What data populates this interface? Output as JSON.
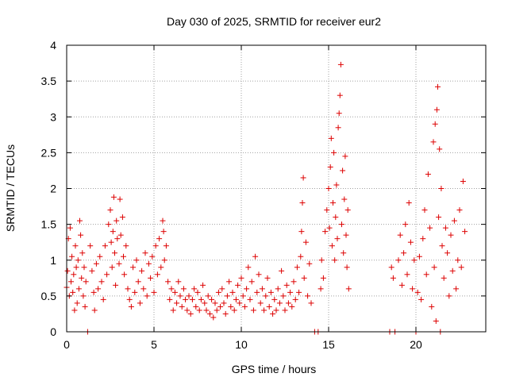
{
  "chart_data": {
    "type": "scatter",
    "title": "Day 030 of 2025, SRMTID for receiver eur2",
    "xlabel": "GPS time / hours",
    "ylabel": "SRMTID / TECUs",
    "xlim": [
      0,
      24
    ],
    "ylim": [
      0,
      4
    ],
    "xticks": [
      0,
      5,
      10,
      15,
      20
    ],
    "yticks": [
      0,
      0.5,
      1,
      1.5,
      2,
      2.5,
      3,
      3.5,
      4
    ],
    "grid": true,
    "marker": "+",
    "color": "#dd0000",
    "series": [
      {
        "name": "SRMTID",
        "points": [
          [
            0.0,
            0.62
          ],
          [
            0.05,
            0.85
          ],
          [
            0.1,
            1.3
          ],
          [
            0.15,
            0.5
          ],
          [
            0.2,
            1.45
          ],
          [
            0.25,
            0.7
          ],
          [
            0.3,
            1.05
          ],
          [
            0.35,
            0.55
          ],
          [
            0.4,
            0.8
          ],
          [
            0.45,
            0.3
          ],
          [
            0.5,
            1.2
          ],
          [
            0.55,
            0.9
          ],
          [
            0.6,
            0.4
          ],
          [
            0.65,
            1.0
          ],
          [
            0.7,
            0.6
          ],
          [
            0.75,
            1.55
          ],
          [
            0.8,
            1.35
          ],
          [
            0.85,
            0.75
          ],
          [
            0.9,
            1.1
          ],
          [
            0.95,
            0.5
          ],
          [
            1.0,
            0.9
          ],
          [
            1.05,
            0.35
          ],
          [
            1.1,
            0.7
          ],
          [
            1.2,
            0.0
          ],
          [
            1.35,
            1.2
          ],
          [
            1.45,
            0.85
          ],
          [
            1.55,
            0.55
          ],
          [
            1.6,
            0.3
          ],
          [
            1.7,
            0.95
          ],
          [
            1.8,
            0.6
          ],
          [
            1.9,
            1.05
          ],
          [
            2.0,
            0.7
          ],
          [
            2.1,
            0.45
          ],
          [
            2.2,
            1.2
          ],
          [
            2.3,
            0.8
          ],
          [
            2.4,
            1.5
          ],
          [
            2.5,
            1.7
          ],
          [
            2.55,
            1.25
          ],
          [
            2.6,
            0.9
          ],
          [
            2.65,
            1.4
          ],
          [
            2.7,
            1.88
          ],
          [
            2.75,
            1.1
          ],
          [
            2.8,
            0.65
          ],
          [
            2.85,
            1.55
          ],
          [
            2.9,
            1.3
          ],
          [
            3.0,
            0.95
          ],
          [
            3.05,
            1.85
          ],
          [
            3.1,
            1.35
          ],
          [
            3.2,
            1.6
          ],
          [
            3.25,
            1.05
          ],
          [
            3.3,
            0.8
          ],
          [
            3.4,
            1.2
          ],
          [
            3.5,
            0.6
          ],
          [
            3.6,
            0.45
          ],
          [
            3.7,
            0.35
          ],
          [
            3.8,
            0.9
          ],
          [
            3.9,
            0.55
          ],
          [
            4.0,
            1.0
          ],
          [
            4.1,
            0.7
          ],
          [
            4.2,
            0.4
          ],
          [
            4.3,
            0.85
          ],
          [
            4.4,
            0.6
          ],
          [
            4.5,
            1.1
          ],
          [
            4.6,
            0.5
          ],
          [
            4.7,
            0.95
          ],
          [
            4.8,
            0.75
          ],
          [
            4.9,
            1.05
          ],
          [
            5.0,
            0.55
          ],
          [
            5.1,
            1.2
          ],
          [
            5.2,
            0.8
          ],
          [
            5.3,
            1.3
          ],
          [
            5.4,
            0.9
          ],
          [
            5.5,
            1.55
          ],
          [
            5.55,
            1.4
          ],
          [
            5.6,
            1.0
          ],
          [
            5.7,
            1.2
          ],
          [
            5.8,
            0.7
          ],
          [
            5.9,
            0.45
          ],
          [
            6.0,
            0.6
          ],
          [
            6.1,
            0.3
          ],
          [
            6.2,
            0.55
          ],
          [
            6.3,
            0.4
          ],
          [
            6.4,
            0.7
          ],
          [
            6.5,
            0.5
          ],
          [
            6.6,
            0.35
          ],
          [
            6.7,
            0.6
          ],
          [
            6.8,
            0.45
          ],
          [
            6.9,
            0.3
          ],
          [
            7.0,
            0.5
          ],
          [
            7.1,
            0.25
          ],
          [
            7.2,
            0.45
          ],
          [
            7.3,
            0.6
          ],
          [
            7.4,
            0.35
          ],
          [
            7.5,
            0.55
          ],
          [
            7.6,
            0.3
          ],
          [
            7.7,
            0.45
          ],
          [
            7.8,
            0.65
          ],
          [
            7.9,
            0.4
          ],
          [
            8.0,
            0.3
          ],
          [
            8.1,
            0.5
          ],
          [
            8.2,
            0.25
          ],
          [
            8.3,
            0.45
          ],
          [
            8.4,
            0.2
          ],
          [
            8.5,
            0.4
          ],
          [
            8.6,
            0.3
          ],
          [
            8.7,
            0.55
          ],
          [
            8.8,
            0.35
          ],
          [
            8.9,
            0.6
          ],
          [
            9.0,
            0.4
          ],
          [
            9.1,
            0.25
          ],
          [
            9.2,
            0.5
          ],
          [
            9.3,
            0.7
          ],
          [
            9.4,
            0.35
          ],
          [
            9.5,
            0.55
          ],
          [
            9.6,
            0.3
          ],
          [
            9.7,
            0.45
          ],
          [
            9.8,
            0.65
          ],
          [
            9.9,
            0.4
          ],
          [
            10.0,
            0.75
          ],
          [
            10.1,
            0.5
          ],
          [
            10.2,
            0.35
          ],
          [
            10.3,
            0.6
          ],
          [
            10.4,
            0.9
          ],
          [
            10.5,
            0.45
          ],
          [
            10.6,
            0.7
          ],
          [
            10.7,
            0.3
          ],
          [
            10.8,
            1.05
          ],
          [
            10.9,
            0.55
          ],
          [
            11.0,
            0.8
          ],
          [
            11.1,
            0.4
          ],
          [
            11.2,
            0.6
          ],
          [
            11.3,
            0.3
          ],
          [
            11.4,
            0.5
          ],
          [
            11.5,
            0.75
          ],
          [
            11.6,
            0.35
          ],
          [
            11.7,
            0.55
          ],
          [
            11.8,
            0.25
          ],
          [
            11.9,
            0.45
          ],
          [
            12.0,
            0.3
          ],
          [
            12.1,
            0.6
          ],
          [
            12.2,
            0.4
          ],
          [
            12.3,
            0.85
          ],
          [
            12.4,
            0.5
          ],
          [
            12.5,
            0.3
          ],
          [
            12.6,
            0.65
          ],
          [
            12.7,
            0.4
          ],
          [
            12.8,
            0.55
          ],
          [
            12.9,
            0.35
          ],
          [
            13.0,
            0.7
          ],
          [
            13.1,
            0.45
          ],
          [
            13.2,
            0.9
          ],
          [
            13.3,
            0.55
          ],
          [
            13.4,
            1.05
          ],
          [
            13.45,
            1.4
          ],
          [
            13.5,
            1.8
          ],
          [
            13.55,
            2.15
          ],
          [
            13.6,
            0.75
          ],
          [
            13.7,
            1.25
          ],
          [
            13.8,
            0.5
          ],
          [
            13.9,
            0.95
          ],
          [
            14.0,
            0.4
          ],
          [
            14.2,
            0.0
          ],
          [
            14.4,
            0.0
          ],
          [
            14.55,
            0.6
          ],
          [
            14.6,
            1.0
          ],
          [
            14.7,
            0.75
          ],
          [
            14.8,
            1.4
          ],
          [
            14.9,
            1.7
          ],
          [
            15.0,
            2.0
          ],
          [
            15.05,
            1.45
          ],
          [
            15.1,
            2.3
          ],
          [
            15.15,
            2.7
          ],
          [
            15.2,
            1.2
          ],
          [
            15.25,
            1.8
          ],
          [
            15.3,
            2.5
          ],
          [
            15.35,
            1.0
          ],
          [
            15.4,
            1.6
          ],
          [
            15.45,
            2.05
          ],
          [
            15.5,
            1.3
          ],
          [
            15.55,
            2.85
          ],
          [
            15.6,
            3.05
          ],
          [
            15.65,
            3.3
          ],
          [
            15.7,
            3.73
          ],
          [
            15.75,
            1.5
          ],
          [
            15.8,
            2.25
          ],
          [
            15.85,
            1.1
          ],
          [
            15.9,
            1.85
          ],
          [
            15.95,
            2.45
          ],
          [
            16.0,
            1.35
          ],
          [
            16.05,
            0.9
          ],
          [
            16.1,
            1.7
          ],
          [
            16.15,
            0.6
          ],
          [
            18.5,
            0.0
          ],
          [
            18.6,
            0.9
          ],
          [
            18.7,
            0.75
          ],
          [
            18.8,
            0.0
          ],
          [
            19.0,
            1.0
          ],
          [
            19.1,
            1.35
          ],
          [
            19.2,
            0.65
          ],
          [
            19.3,
            1.1
          ],
          [
            19.4,
            1.5
          ],
          [
            19.5,
            0.8
          ],
          [
            19.6,
            1.8
          ],
          [
            19.7,
            1.25
          ],
          [
            19.8,
            0.6
          ],
          [
            19.9,
            1.0
          ],
          [
            20.0,
            0.0
          ],
          [
            20.1,
            0.55
          ],
          [
            20.2,
            1.05
          ],
          [
            20.3,
            0.45
          ],
          [
            20.4,
            1.3
          ],
          [
            20.5,
            1.7
          ],
          [
            20.6,
            0.8
          ],
          [
            20.7,
            2.2
          ],
          [
            20.8,
            1.45
          ],
          [
            20.9,
            0.35
          ],
          [
            21.0,
            2.65
          ],
          [
            21.05,
            0.9
          ],
          [
            21.1,
            2.9
          ],
          [
            21.15,
            0.15
          ],
          [
            21.2,
            3.1
          ],
          [
            21.25,
            3.42
          ],
          [
            21.3,
            1.6
          ],
          [
            21.35,
            2.55
          ],
          [
            21.4,
            0.0
          ],
          [
            21.45,
            2.0
          ],
          [
            21.5,
            1.2
          ],
          [
            21.6,
            0.75
          ],
          [
            21.7,
            1.45
          ],
          [
            21.8,
            1.1
          ],
          [
            21.9,
            0.5
          ],
          [
            22.0,
            1.35
          ],
          [
            22.1,
            0.85
          ],
          [
            22.2,
            1.55
          ],
          [
            22.3,
            0.6
          ],
          [
            22.4,
            1.0
          ],
          [
            22.5,
            1.7
          ],
          [
            22.6,
            0.9
          ],
          [
            22.7,
            2.1
          ],
          [
            22.8,
            1.4
          ]
        ]
      }
    ]
  }
}
